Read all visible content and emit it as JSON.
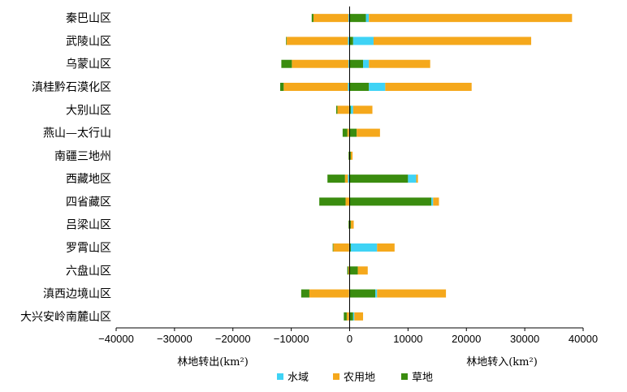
{
  "chart_data": {
    "type": "bar",
    "orientation": "horizontal",
    "stacked": true,
    "categories": [
      "秦巴山区",
      "武陵山区",
      "乌蒙山区",
      "滇桂黔石漠化区",
      "大别山区",
      "燕山—太行山",
      "南疆三地州",
      "西藏地区",
      "四省藏区",
      "吕梁山区",
      "罗霄山区",
      "六盘山区",
      "滇西边境山区",
      "大兴安岭南麓山区"
    ],
    "xlim": [
      -40000,
      40000
    ],
    "xticks": [
      "−40000",
      "−30000",
      "−20000",
      "−10000",
      "0",
      "10000",
      "20000",
      "30000",
      "40000"
    ],
    "xtick_values": [
      -40000,
      -30000,
      -20000,
      -10000,
      0,
      10000,
      20000,
      30000,
      40000
    ],
    "xlabel_left": "林地转出(km²)",
    "xlabel_right": "林地转入(km²)",
    "legend_position": "bottom-center",
    "series": [
      {
        "name": "水域",
        "color": "#3fd3f5",
        "out": [
          -200,
          -300,
          -200,
          -300,
          -100,
          -100,
          0,
          -300,
          0,
          0,
          -100,
          0,
          -100,
          -100
        ],
        "in": [
          500,
          3500,
          1000,
          2800,
          400,
          0,
          0,
          1400,
          300,
          0,
          4500,
          0,
          300,
          200
        ]
      },
      {
        "name": "农用地",
        "color": "#f5a81c",
        "out": [
          -6000,
          -10500,
          -9700,
          -11000,
          -2000,
          -300,
          -100,
          -500,
          -700,
          -100,
          -2700,
          -200,
          -6800,
          -400
        ],
        "in": [
          34800,
          27000,
          10500,
          14800,
          3300,
          4000,
          300,
          300,
          1000,
          500,
          3000,
          1700,
          11800,
          1500
        ]
      },
      {
        "name": "草地",
        "color": "#3a8c0f",
        "out": [
          -300,
          -100,
          -1800,
          -600,
          -200,
          -800,
          -100,
          -3000,
          -4500,
          -100,
          -100,
          -200,
          -1400,
          -500
        ],
        "in": [
          2800,
          600,
          2300,
          3300,
          200,
          1200,
          200,
          10000,
          14000,
          200,
          200,
          1400,
          4400,
          600
        ]
      }
    ]
  }
}
